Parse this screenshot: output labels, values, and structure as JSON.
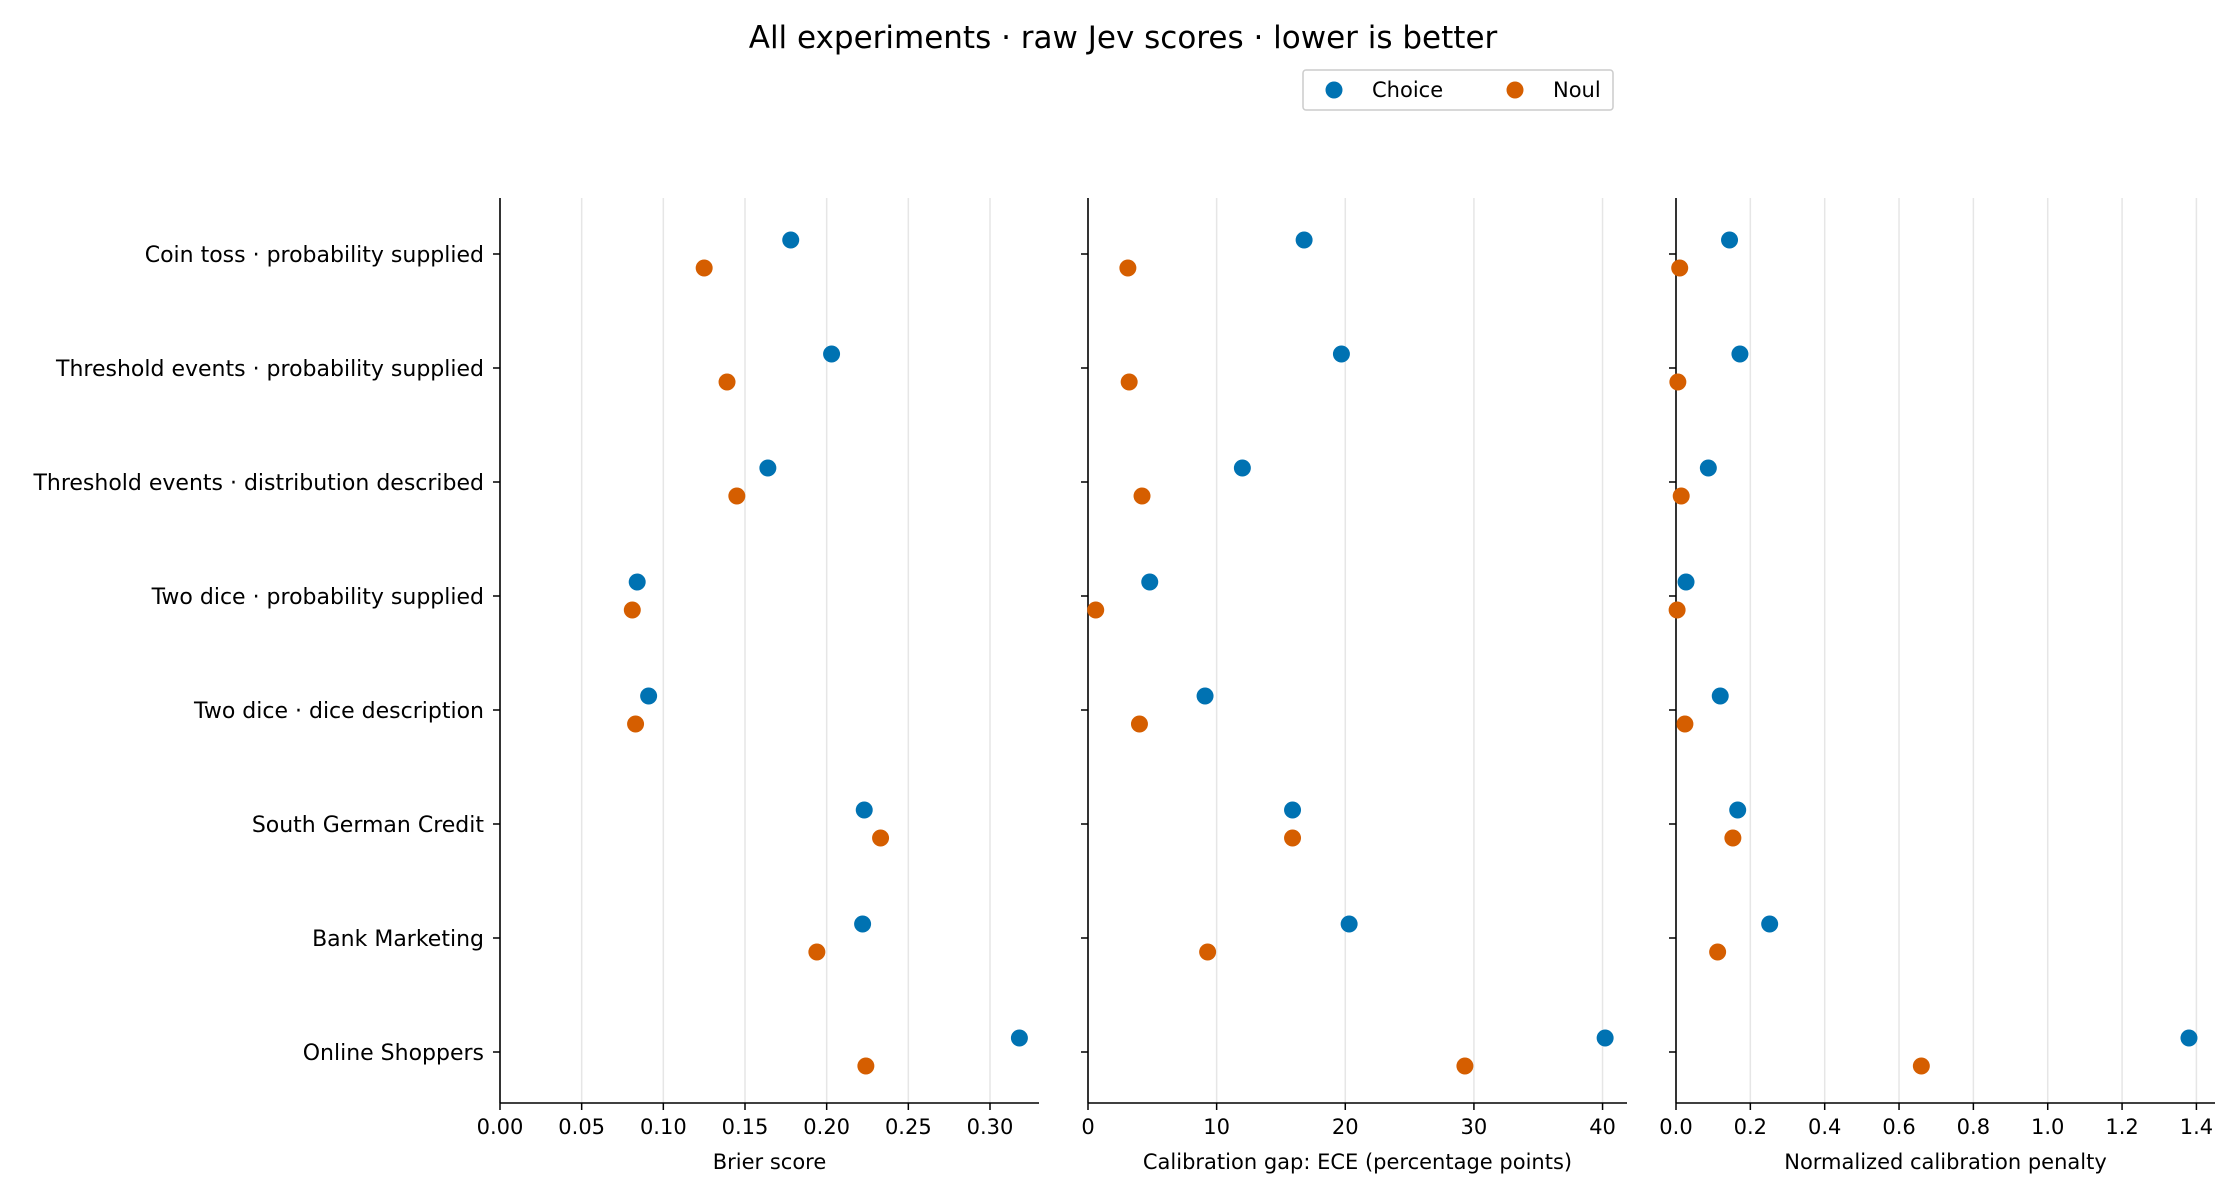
{
  "chart_data": {
    "type": "scatter",
    "title": "All experiments · raw Jev scores · lower is better",
    "legend_position": "top-center",
    "grid": "vertical",
    "categories": [
      "Coin toss · probability supplied",
      "Threshold events · probability supplied",
      "Threshold events · distribution described",
      "Two dice · probability supplied",
      "Two dice · dice description",
      "South German Credit",
      "Bank Marketing",
      "Online Shoppers"
    ],
    "series_names": [
      "Choice",
      "Noul"
    ],
    "series_colors": [
      "#0072b2",
      "#d55e00"
    ],
    "panels": [
      {
        "xlabel": "Brier score",
        "xlim": [
          0,
          0.33
        ],
        "ticks": [
          0,
          0.05,
          0.1,
          0.15,
          0.2,
          0.25,
          0.3
        ],
        "tick_labels": [
          "0.00",
          "0.05",
          "0.10",
          "0.15",
          "0.20",
          "0.25",
          "0.30"
        ],
        "series": [
          {
            "name": "Choice",
            "values": [
              0.178,
              0.203,
              0.164,
              0.084,
              0.091,
              0.223,
              0.222,
              0.318
            ]
          },
          {
            "name": "Noul",
            "values": [
              0.125,
              0.139,
              0.145,
              0.081,
              0.083,
              0.233,
              0.194,
              0.224
            ]
          }
        ]
      },
      {
        "xlabel": "Calibration gap: ECE (percentage points)",
        "xlim": [
          0,
          41.9
        ],
        "ticks": [
          0,
          10,
          20,
          30,
          40
        ],
        "tick_labels": [
          "0",
          "10",
          "20",
          "30",
          "40"
        ],
        "series": [
          {
            "name": "Choice",
            "values": [
              16.8,
              19.7,
              12.0,
              4.8,
              9.1,
              15.9,
              20.3,
              40.2
            ]
          },
          {
            "name": "Noul",
            "values": [
              3.1,
              3.2,
              4.2,
              0.6,
              4.0,
              15.9,
              9.3,
              29.3
            ]
          }
        ]
      },
      {
        "xlabel": "Normalized calibration penalty",
        "xlim": [
          0,
          1.45
        ],
        "ticks": [
          0.0,
          0.2,
          0.4,
          0.6,
          0.8,
          1.0,
          1.2,
          1.4
        ],
        "tick_labels": [
          "0.0",
          "0.2",
          "0.4",
          "0.6",
          "0.8",
          "1.0",
          "1.2",
          "1.4"
        ],
        "series": [
          {
            "name": "Choice",
            "values": [
              0.144,
              0.172,
              0.087,
              0.027,
              0.119,
              0.166,
              0.252,
              1.38
            ]
          },
          {
            "name": "Noul",
            "values": [
              0.01,
              0.005,
              0.014,
              0.003,
              0.024,
              0.153,
              0.112,
              0.66
            ]
          }
        ]
      }
    ]
  }
}
